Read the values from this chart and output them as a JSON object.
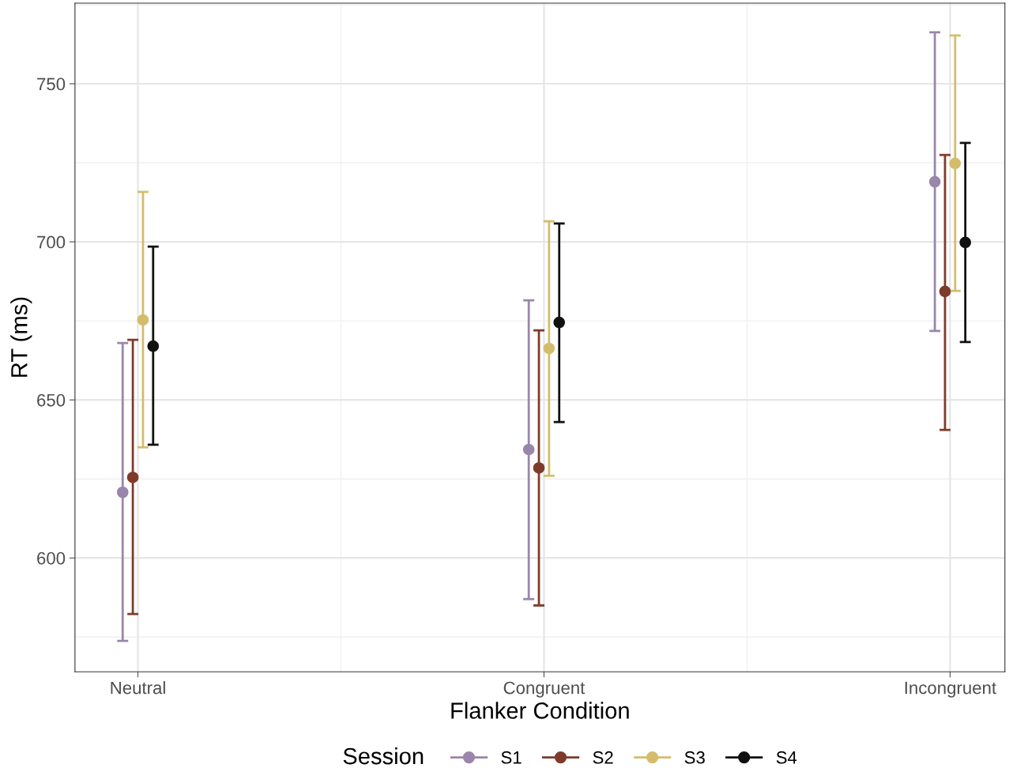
{
  "chart_data": {
    "type": "scatter",
    "xlabel": "Flanker Condition",
    "ylabel": "RT (ms)",
    "legend_title": "Session",
    "categories": [
      "Neutral",
      "Congruent",
      "Incongruent"
    ],
    "series": [
      {
        "name": "S1",
        "color": "#9a86aa",
        "values": [
          620.8,
          634.3,
          719.0
        ],
        "errors": [
          [
            573.8,
            668.0
          ],
          [
            587.0,
            681.5
          ],
          [
            671.8,
            766.3
          ]
        ]
      },
      {
        "name": "S2",
        "color": "#7e3b2b",
        "values": [
          625.5,
          628.5,
          684.3
        ],
        "errors": [
          [
            582.3,
            669.0
          ],
          [
            585.0,
            672.0
          ],
          [
            640.5,
            727.5
          ]
        ]
      },
      {
        "name": "S3",
        "color": "#d3bd6c",
        "values": [
          675.3,
          666.3,
          724.8
        ],
        "errors": [
          [
            635.0,
            715.8
          ],
          [
            626.0,
            706.5
          ],
          [
            684.5,
            765.3
          ]
        ]
      },
      {
        "name": "S4",
        "color": "#111111",
        "values": [
          667.0,
          674.5,
          699.8
        ],
        "errors": [
          [
            635.8,
            698.5
          ],
          [
            643.0,
            705.8
          ],
          [
            668.3,
            731.3
          ]
        ]
      }
    ],
    "ylim": [
      564,
      775.5
    ],
    "yticks": [
      600,
      650,
      700,
      750
    ],
    "grid": true,
    "legend": "bottom",
    "marker": "circle"
  }
}
